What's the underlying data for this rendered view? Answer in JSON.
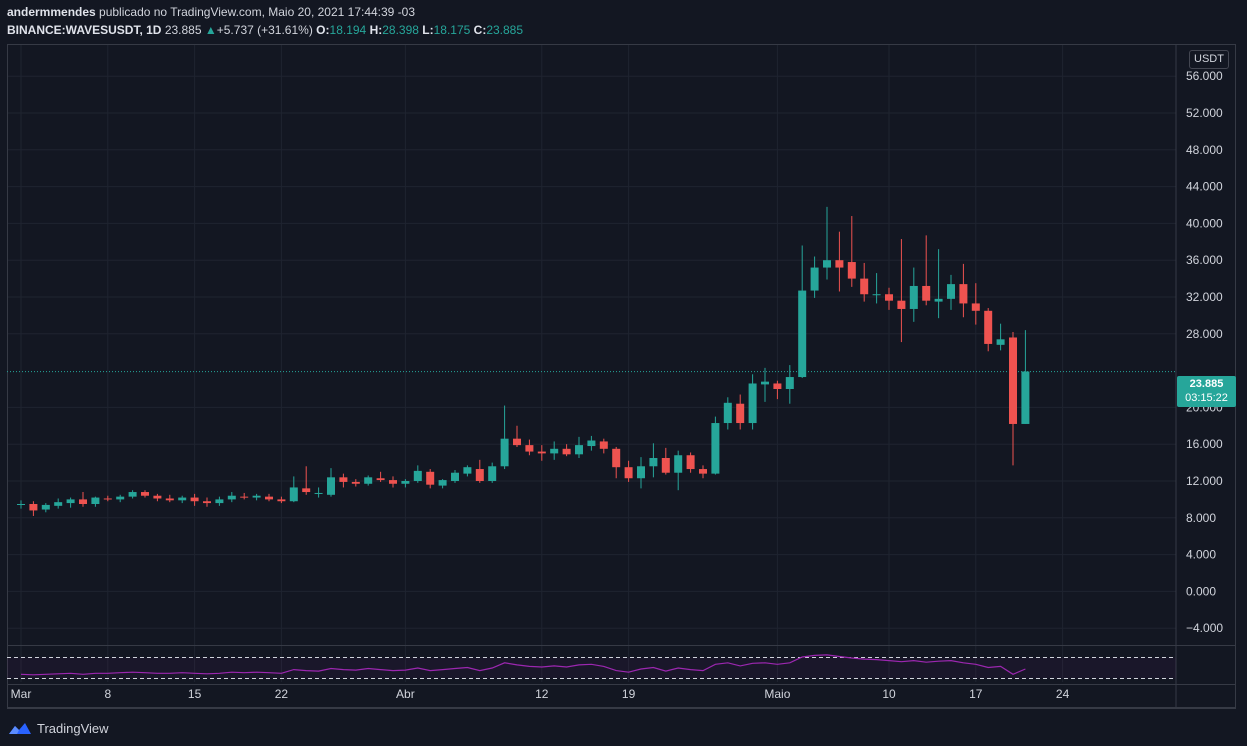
{
  "header": {
    "author": "andermmendes",
    "publish_info": " publicado no TradingView.com, Maio 20, 2021 17:44:39 -03",
    "symbol": "BINANCE:WAVESUSDT, 1D",
    "last_price": "23.885",
    "change": "+5.737 (+31.61%)",
    "open_label": "O:",
    "open": "18.194",
    "high_label": "H:",
    "high": "28.398",
    "low_label": "L:",
    "low": "18.175",
    "close_label": "C:",
    "close": "23.885"
  },
  "currency_badge": "USDT",
  "price_tag": {
    "price": "23.885",
    "countdown": "03:15:22"
  },
  "brand": "TradingView",
  "colors": {
    "up": "#26a69a",
    "down": "#ef5350",
    "rsi": "#9c27b0",
    "grid": "#1f2430",
    "background": "#131722"
  },
  "chart_data": {
    "type": "candlestick",
    "y_axis": {
      "ticks": [
        "56.000",
        "52.000",
        "48.000",
        "44.000",
        "40.000",
        "36.000",
        "32.000",
        "28.000",
        "20.000",
        "16.000",
        "12.000",
        "8.000",
        "4.000",
        "0.000",
        "−4.000"
      ],
      "tick_values": [
        56,
        52,
        48,
        44,
        40,
        36,
        32,
        28,
        20,
        16,
        12,
        8,
        4,
        0,
        -4
      ],
      "range": [
        -5.5,
        59.5
      ]
    },
    "x_axis": {
      "labels": [
        "Mar",
        "8",
        "15",
        "22",
        "Abr",
        "12",
        "19",
        "Maio",
        "10",
        "17",
        "24"
      ],
      "label_day_index": [
        0,
        7,
        14,
        21,
        31,
        42,
        49,
        61,
        70,
        77,
        84
      ]
    },
    "current_price": 23.885,
    "candles": [
      {
        "o": 9.4,
        "h": 9.9,
        "l": 9.0,
        "c": 9.5
      },
      {
        "o": 9.5,
        "h": 9.8,
        "l": 8.2,
        "c": 8.8
      },
      {
        "o": 8.9,
        "h": 9.6,
        "l": 8.6,
        "c": 9.4
      },
      {
        "o": 9.3,
        "h": 10.1,
        "l": 9.0,
        "c": 9.7
      },
      {
        "o": 9.6,
        "h": 10.2,
        "l": 9.1,
        "c": 10.0
      },
      {
        "o": 10.0,
        "h": 10.8,
        "l": 9.2,
        "c": 9.5
      },
      {
        "o": 9.5,
        "h": 10.3,
        "l": 9.2,
        "c": 10.2
      },
      {
        "o": 10.1,
        "h": 10.4,
        "l": 9.8,
        "c": 10.0
      },
      {
        "o": 10.0,
        "h": 10.5,
        "l": 9.7,
        "c": 10.3
      },
      {
        "o": 10.3,
        "h": 11.0,
        "l": 10.1,
        "c": 10.8
      },
      {
        "o": 10.8,
        "h": 11.0,
        "l": 10.2,
        "c": 10.4
      },
      {
        "o": 10.4,
        "h": 10.6,
        "l": 9.8,
        "c": 10.1
      },
      {
        "o": 10.1,
        "h": 10.5,
        "l": 9.7,
        "c": 9.9
      },
      {
        "o": 9.9,
        "h": 10.4,
        "l": 9.6,
        "c": 10.2
      },
      {
        "o": 10.2,
        "h": 10.6,
        "l": 9.3,
        "c": 9.8
      },
      {
        "o": 9.8,
        "h": 10.2,
        "l": 9.2,
        "c": 9.6
      },
      {
        "o": 9.6,
        "h": 10.3,
        "l": 9.3,
        "c": 10.0
      },
      {
        "o": 10.0,
        "h": 10.8,
        "l": 9.7,
        "c": 10.4
      },
      {
        "o": 10.3,
        "h": 10.7,
        "l": 10.0,
        "c": 10.2
      },
      {
        "o": 10.2,
        "h": 10.6,
        "l": 9.9,
        "c": 10.4
      },
      {
        "o": 10.3,
        "h": 10.6,
        "l": 9.8,
        "c": 10.0
      },
      {
        "o": 10.0,
        "h": 10.3,
        "l": 9.6,
        "c": 9.8
      },
      {
        "o": 9.8,
        "h": 12.5,
        "l": 9.7,
        "c": 11.3
      },
      {
        "o": 11.2,
        "h": 13.6,
        "l": 10.5,
        "c": 10.8
      },
      {
        "o": 10.7,
        "h": 11.3,
        "l": 10.2,
        "c": 10.7
      },
      {
        "o": 10.5,
        "h": 13.4,
        "l": 10.3,
        "c": 12.4
      },
      {
        "o": 12.4,
        "h": 12.8,
        "l": 11.3,
        "c": 11.9
      },
      {
        "o": 11.9,
        "h": 12.2,
        "l": 11.4,
        "c": 11.7
      },
      {
        "o": 11.7,
        "h": 12.6,
        "l": 11.5,
        "c": 12.4
      },
      {
        "o": 12.3,
        "h": 13.0,
        "l": 11.9,
        "c": 12.1
      },
      {
        "o": 12.1,
        "h": 12.5,
        "l": 11.3,
        "c": 11.7
      },
      {
        "o": 11.7,
        "h": 12.2,
        "l": 11.3,
        "c": 12.0
      },
      {
        "o": 12.0,
        "h": 13.7,
        "l": 11.8,
        "c": 13.1
      },
      {
        "o": 13.0,
        "h": 13.3,
        "l": 11.2,
        "c": 11.6
      },
      {
        "o": 11.5,
        "h": 12.2,
        "l": 11.2,
        "c": 12.1
      },
      {
        "o": 12.0,
        "h": 13.2,
        "l": 11.8,
        "c": 12.9
      },
      {
        "o": 12.8,
        "h": 13.7,
        "l": 12.5,
        "c": 13.5
      },
      {
        "o": 13.3,
        "h": 14.3,
        "l": 11.8,
        "c": 12.0
      },
      {
        "o": 12.0,
        "h": 14.0,
        "l": 11.8,
        "c": 13.6
      },
      {
        "o": 13.6,
        "h": 20.2,
        "l": 13.3,
        "c": 16.6
      },
      {
        "o": 16.6,
        "h": 18.0,
        "l": 15.7,
        "c": 15.9
      },
      {
        "o": 15.9,
        "h": 16.5,
        "l": 14.8,
        "c": 15.2
      },
      {
        "o": 15.2,
        "h": 15.9,
        "l": 14.2,
        "c": 15.0
      },
      {
        "o": 15.0,
        "h": 16.3,
        "l": 14.3,
        "c": 15.5
      },
      {
        "o": 15.5,
        "h": 16.0,
        "l": 14.7,
        "c": 14.9
      },
      {
        "o": 14.9,
        "h": 16.8,
        "l": 14.5,
        "c": 15.9
      },
      {
        "o": 15.8,
        "h": 16.9,
        "l": 15.3,
        "c": 16.4
      },
      {
        "o": 16.3,
        "h": 16.6,
        "l": 15.0,
        "c": 15.5
      },
      {
        "o": 15.5,
        "h": 15.7,
        "l": 12.3,
        "c": 13.5
      },
      {
        "o": 13.5,
        "h": 14.2,
        "l": 11.9,
        "c": 12.3
      },
      {
        "o": 12.3,
        "h": 14.6,
        "l": 11.2,
        "c": 13.6
      },
      {
        "o": 13.6,
        "h": 16.1,
        "l": 12.4,
        "c": 14.5
      },
      {
        "o": 14.5,
        "h": 15.6,
        "l": 12.7,
        "c": 12.9
      },
      {
        "o": 12.9,
        "h": 15.3,
        "l": 11.0,
        "c": 14.8
      },
      {
        "o": 14.8,
        "h": 15.1,
        "l": 12.9,
        "c": 13.3
      },
      {
        "o": 13.3,
        "h": 13.7,
        "l": 12.3,
        "c": 12.8
      },
      {
        "o": 12.8,
        "h": 19.0,
        "l": 12.7,
        "c": 18.3
      },
      {
        "o": 18.3,
        "h": 21.1,
        "l": 17.6,
        "c": 20.5
      },
      {
        "o": 20.4,
        "h": 21.4,
        "l": 17.6,
        "c": 18.3
      },
      {
        "o": 18.3,
        "h": 23.6,
        "l": 17.6,
        "c": 22.6
      },
      {
        "o": 22.5,
        "h": 24.3,
        "l": 20.6,
        "c": 22.8
      },
      {
        "o": 22.6,
        "h": 22.9,
        "l": 20.9,
        "c": 22.0
      },
      {
        "o": 22.0,
        "h": 24.6,
        "l": 20.4,
        "c": 23.3
      },
      {
        "o": 23.3,
        "h": 37.6,
        "l": 23.2,
        "c": 32.7
      },
      {
        "o": 32.7,
        "h": 36.4,
        "l": 31.9,
        "c": 35.2
      },
      {
        "o": 35.2,
        "h": 41.8,
        "l": 33.9,
        "c": 36.0
      },
      {
        "o": 36.0,
        "h": 39.1,
        "l": 32.6,
        "c": 35.2
      },
      {
        "o": 35.8,
        "h": 40.8,
        "l": 33.1,
        "c": 34.0
      },
      {
        "o": 34.0,
        "h": 35.7,
        "l": 31.5,
        "c": 32.3
      },
      {
        "o": 32.3,
        "h": 34.6,
        "l": 31.3,
        "c": 32.3
      },
      {
        "o": 32.3,
        "h": 33.0,
        "l": 30.6,
        "c": 31.6
      },
      {
        "o": 31.6,
        "h": 38.3,
        "l": 27.1,
        "c": 30.7
      },
      {
        "o": 30.7,
        "h": 35.2,
        "l": 29.3,
        "c": 33.2
      },
      {
        "o": 33.2,
        "h": 38.7,
        "l": 31.1,
        "c": 31.6
      },
      {
        "o": 31.5,
        "h": 37.2,
        "l": 29.7,
        "c": 31.8
      },
      {
        "o": 31.8,
        "h": 34.4,
        "l": 30.6,
        "c": 33.4
      },
      {
        "o": 33.4,
        "h": 35.6,
        "l": 29.8,
        "c": 31.3
      },
      {
        "o": 31.3,
        "h": 33.5,
        "l": 29.0,
        "c": 30.5
      },
      {
        "o": 30.5,
        "h": 30.8,
        "l": 26.1,
        "c": 26.9
      },
      {
        "o": 26.8,
        "h": 29.1,
        "l": 26.2,
        "c": 27.4
      },
      {
        "o": 27.6,
        "h": 28.2,
        "l": 13.7,
        "c": 18.2
      },
      {
        "o": 18.2,
        "h": 28.4,
        "l": 18.2,
        "c": 23.9
      }
    ],
    "rsi": {
      "upper": 70,
      "lower": 30,
      "values": [
        38,
        37,
        38,
        39,
        40,
        38,
        40,
        40,
        41,
        42,
        41,
        40,
        40,
        41,
        40,
        39,
        40,
        42,
        41,
        42,
        41,
        40,
        47,
        45,
        44,
        49,
        47,
        46,
        49,
        47,
        45,
        46,
        50,
        45,
        47,
        49,
        51,
        45,
        50,
        60,
        56,
        53,
        52,
        54,
        52,
        56,
        57,
        53,
        45,
        42,
        48,
        51,
        44,
        50,
        47,
        45,
        57,
        60,
        54,
        59,
        60,
        57,
        60,
        71,
        74,
        75,
        72,
        69,
        67,
        66,
        64,
        62,
        64,
        61,
        63,
        64,
        60,
        57,
        51,
        53,
        38,
        48
      ]
    }
  }
}
